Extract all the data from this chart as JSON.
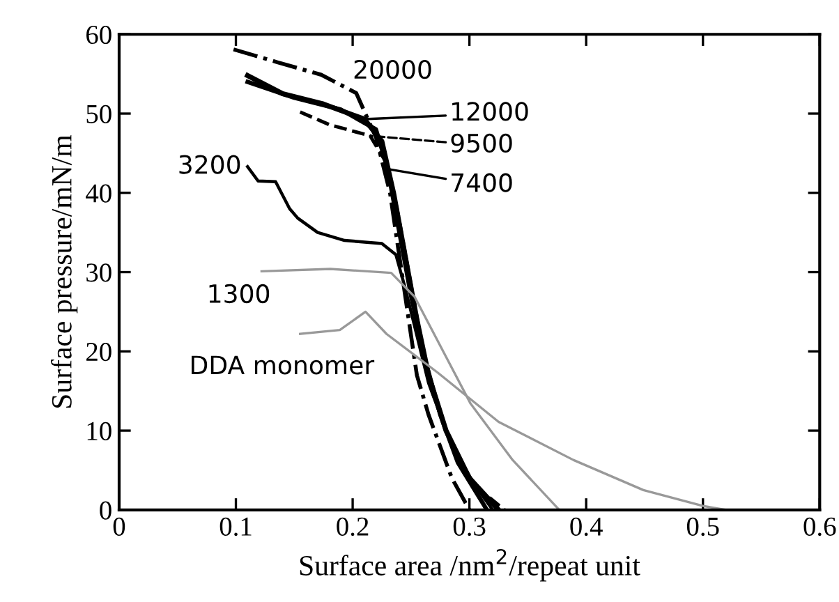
{
  "chart_data": {
    "type": "line",
    "xlabel": "Surface area /nm$^{2}$/repeat unit",
    "ylabel": "Surface pressure/mN/m",
    "xlim": [
      0,
      0.6
    ],
    "xticks": [
      0,
      0.1,
      0.2,
      0.3,
      0.4,
      0.5,
      0.6
    ],
    "ylim": [
      0,
      60
    ],
    "yticks": [
      0,
      10,
      20,
      30,
      40,
      50,
      60
    ],
    "grid": false,
    "legend": "top",
    "marker": "none",
    "series": [
      {
        "name": "20000",
        "color": "#000000",
        "line_style": "dashdot",
        "x": [
          0.098,
          0.135,
          0.173,
          0.203,
          0.22,
          0.232,
          0.24,
          0.248,
          0.255,
          0.265,
          0.285,
          0.3
        ],
        "values": [
          58.1,
          56.5,
          54.9,
          52.6,
          47,
          40,
          32,
          24,
          17,
          12,
          4,
          0
        ]
      },
      {
        "name": "12000",
        "color": "#000000",
        "line_style": "solid",
        "x": [
          0.11,
          0.14,
          0.175,
          0.21,
          0.225,
          0.235,
          0.245,
          0.255,
          0.265,
          0.28,
          0.3,
          0.325
        ],
        "values": [
          54.8,
          52.5,
          51.2,
          49.3,
          46.5,
          40,
          32,
          24,
          17,
          10,
          4,
          0
        ]
      },
      {
        "name": "9500",
        "color": "#000000",
        "line_style": "dashed",
        "x": [
          0.155,
          0.18,
          0.215,
          0.228,
          0.238,
          0.248,
          0.258,
          0.268,
          0.285,
          0.305,
          0.33
        ],
        "values": [
          50.2,
          48.6,
          47.2,
          44,
          38,
          30,
          22,
          15,
          8,
          3,
          0
        ]
      },
      {
        "name": "7400",
        "color": "#000000",
        "line_style": "solid",
        "x": [
          0.11,
          0.15,
          0.19,
          0.22,
          0.23,
          0.24,
          0.25,
          0.262,
          0.275,
          0.29,
          0.315
        ],
        "values": [
          54,
          52,
          50.5,
          48,
          43,
          35,
          27,
          19,
          12,
          6,
          0
        ]
      },
      {
        "name": "3200",
        "color": "#000000",
        "line_style": "solid",
        "x": [
          0.11,
          0.119,
          0.134,
          0.146,
          0.153,
          0.17,
          0.193,
          0.225,
          0.237,
          0.245,
          0.255,
          0.265,
          0.28,
          0.3,
          0.32
        ],
        "values": [
          43.3,
          41.5,
          41.4,
          38,
          36.8,
          35,
          34,
          33.6,
          32.2,
          28,
          22,
          16,
          10,
          4,
          0
        ]
      },
      {
        "name": "1300",
        "color": "#999999",
        "line_style": "solid",
        "x": [
          0.122,
          0.181,
          0.233,
          0.253,
          0.301,
          0.337,
          0.377
        ],
        "values": [
          30.1,
          30.4,
          29.9,
          26.9,
          13.4,
          6.3,
          0
        ]
      },
      {
        "name": "DDA monomer",
        "color": "#999999",
        "line_style": "solid",
        "x": [
          0.155,
          0.189,
          0.211,
          0.229,
          0.273,
          0.325,
          0.389,
          0.449,
          0.5,
          0.52
        ],
        "values": [
          22.2,
          22.7,
          25,
          22.2,
          17.3,
          11.1,
          6.3,
          2.5,
          0.5,
          0
        ]
      }
    ]
  }
}
